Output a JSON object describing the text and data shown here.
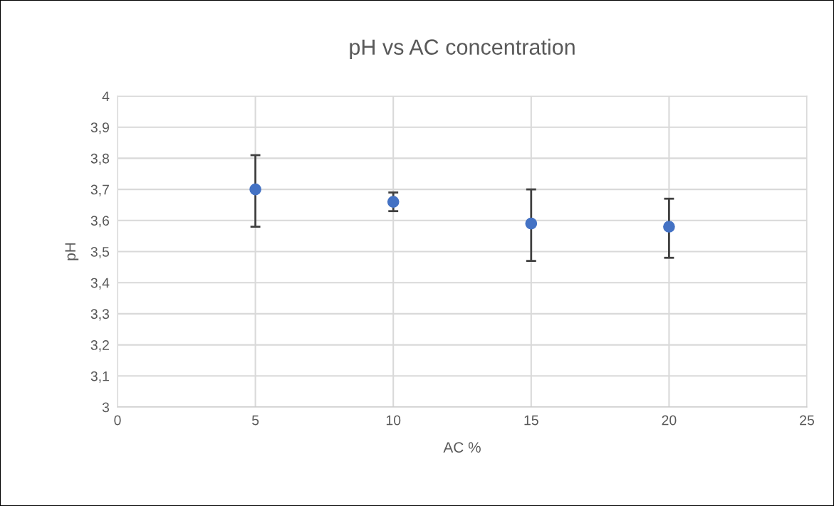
{
  "chart_data": {
    "type": "scatter",
    "title": "pH vs AC concentration",
    "xlabel": "AC %",
    "ylabel": "pH",
    "x": [
      5,
      10,
      15,
      20
    ],
    "series": [
      {
        "color": "#4472c4",
        "values": [
          3.7,
          3.66,
          3.59,
          3.58
        ],
        "errors": [
          [
            3.58,
            3.81
          ],
          [
            3.63,
            3.69
          ],
          [
            3.47,
            3.7
          ],
          [
            3.48,
            3.67
          ]
        ]
      }
    ],
    "xlim": [
      0,
      25
    ],
    "xticks": [
      0,
      5,
      10,
      15,
      20,
      25
    ],
    "ylim": [
      3,
      4
    ],
    "yticks": [
      3,
      {
        "value": 3.1,
        "label": "3,1"
      },
      {
        "value": 3.2,
        "label": "3,2"
      },
      {
        "value": 3.3,
        "label": "3,3"
      },
      {
        "value": 3.4,
        "label": "3,4"
      },
      {
        "value": 3.5,
        "label": "3,5"
      },
      {
        "value": 3.6,
        "label": "3,6"
      },
      {
        "value": 3.7,
        "label": "3,7"
      },
      {
        "value": 3.8,
        "label": "3,8"
      },
      {
        "value": 3.9,
        "label": "3,9"
      },
      4
    ],
    "grid": true,
    "marker": "circle"
  }
}
